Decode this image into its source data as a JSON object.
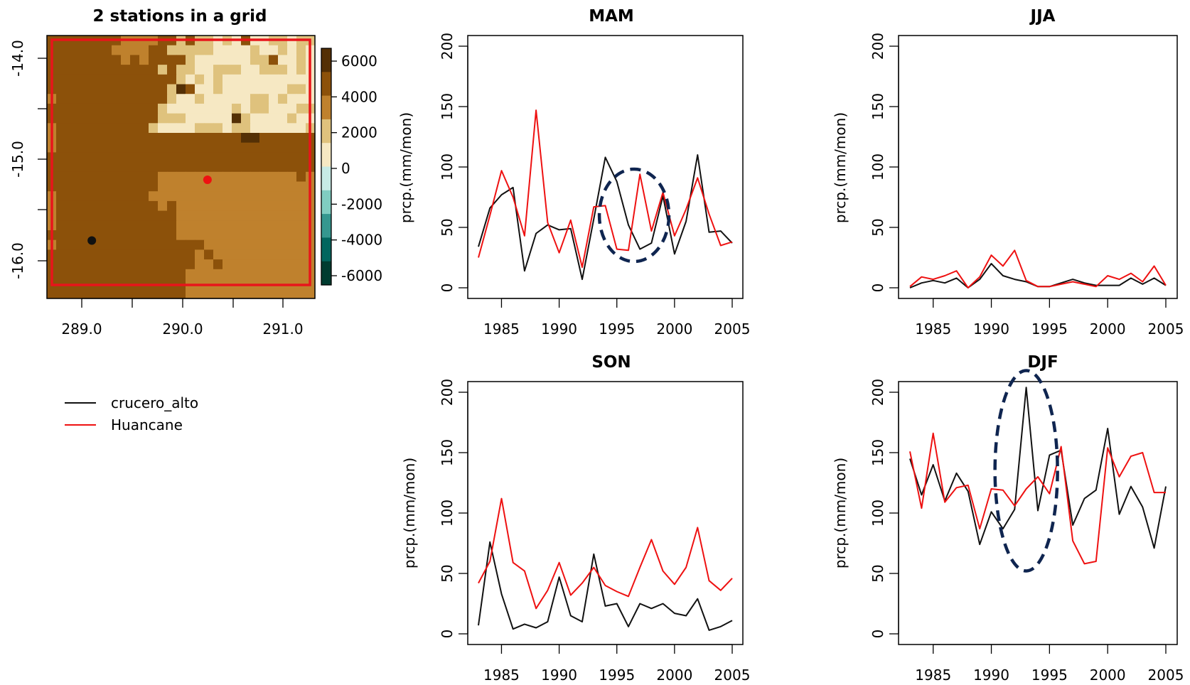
{
  "colors": {
    "black_series": "#111111",
    "red_series": "#ee1111",
    "map_border": "#e8151b",
    "highlight_ellipse": "#0f2550"
  },
  "legend": {
    "items": [
      {
        "label": "crucero_alto",
        "color": "#111111"
      },
      {
        "label": "Huancane",
        "color": "#ee1111"
      }
    ]
  },
  "map": {
    "title": "2 stations in a grid",
    "xticks": [
      "289.0",
      "290.0",
      "291.0"
    ],
    "yticks": [
      "-14.0",
      "-15.0",
      "-16.0"
    ],
    "colorbar": {
      "label": "prcp.(mm/mon)",
      "ticks": [
        "6000",
        "4000",
        "2000",
        "0",
        "-2000",
        "-4000",
        "-6000"
      ],
      "colors": [
        "#543005",
        "#8c510a",
        "#bf812d",
        "#dfc27d",
        "#f6e8c3",
        "#c7eae5",
        "#80cdc1",
        "#35978f",
        "#01665e",
        "#003c30"
      ]
    },
    "stations": [
      {
        "name": "crucero_alto",
        "lon": 289.1,
        "lat": -15.8,
        "color": "#111111"
      },
      {
        "name": "Huancane",
        "lon": 290.25,
        "lat": -15.2,
        "color": "#ee1111"
      }
    ]
  },
  "chart_data": [
    {
      "type": "line",
      "title": "MAM",
      "xlabel": "",
      "ylabel": "",
      "xlim": [
        1983,
        2005
      ],
      "ylim": [
        0,
        200
      ],
      "xticks": [
        "1985",
        "1990",
        "1995",
        "2000",
        "2005"
      ],
      "yticks": [
        "0",
        "50",
        "100",
        "150",
        "200"
      ],
      "x": [
        1983,
        1984,
        1985,
        1986,
        1987,
        1988,
        1989,
        1990,
        1991,
        1992,
        1993,
        1994,
        1995,
        1996,
        1997,
        1998,
        1999,
        2000,
        2001,
        2002,
        2003,
        2004,
        2005
      ],
      "series": [
        {
          "name": "crucero_alto",
          "color": "#111111",
          "values": [
            34,
            66,
            77,
            83,
            14,
            45,
            52,
            48,
            49,
            7,
            57,
            108,
            88,
            52,
            32,
            37,
            76,
            28,
            55,
            110,
            46,
            47,
            37
          ]
        },
        {
          "name": "Huancane",
          "color": "#ee1111",
          "values": [
            25,
            60,
            97,
            75,
            43,
            147,
            54,
            29,
            56,
            17,
            67,
            68,
            32,
            31,
            94,
            47,
            79,
            43,
            65,
            91,
            61,
            35,
            38
          ]
        }
      ],
      "highlight": {
        "center_year": 1996.5,
        "center_value": 60
      }
    },
    {
      "type": "line",
      "title": "JJA",
      "xlabel": "",
      "ylabel": "prcp.(mm/mon)",
      "xlim": [
        1983,
        2005
      ],
      "ylim": [
        0,
        200
      ],
      "xticks": [
        "1985",
        "1990",
        "1995",
        "2000",
        "2005"
      ],
      "yticks": [
        "0",
        "50",
        "100",
        "150",
        "200"
      ],
      "x": [
        1983,
        1984,
        1985,
        1986,
        1987,
        1988,
        1989,
        1990,
        1991,
        1992,
        1993,
        1994,
        1995,
        1996,
        1997,
        1998,
        1999,
        2000,
        2001,
        2002,
        2003,
        2004,
        2005
      ],
      "series": [
        {
          "name": "crucero_alto",
          "color": "#111111",
          "values": [
            0,
            4,
            6,
            4,
            8,
            0,
            7,
            20,
            10,
            7,
            5,
            1,
            1,
            4,
            7,
            4,
            2,
            2,
            2,
            8,
            3,
            8,
            2
          ]
        },
        {
          "name": "Huancane",
          "color": "#ee1111",
          "values": [
            1,
            9,
            7,
            10,
            14,
            0,
            9,
            27,
            18,
            31,
            6,
            1,
            1,
            3,
            5,
            3,
            1,
            10,
            7,
            12,
            5,
            18,
            2
          ]
        }
      ]
    },
    {
      "type": "line",
      "title": "SON",
      "xlabel": "",
      "ylabel": "prcp.(mm/mon)",
      "xlim": [
        1983,
        2005
      ],
      "ylim": [
        0,
        200
      ],
      "xticks": [
        "1985",
        "1990",
        "1995",
        "2000",
        "2005"
      ],
      "yticks": [
        "0",
        "50",
        "100",
        "150",
        "200"
      ],
      "x": [
        1983,
        1984,
        1985,
        1986,
        1987,
        1988,
        1989,
        1990,
        1991,
        1992,
        1993,
        1994,
        1995,
        1996,
        1997,
        1998,
        1999,
        2000,
        2001,
        2002,
        2003,
        2004,
        2005
      ],
      "series": [
        {
          "name": "crucero_alto",
          "color": "#111111",
          "values": [
            7,
            76,
            33,
            4,
            8,
            5,
            10,
            47,
            15,
            10,
            66,
            23,
            25,
            6,
            25,
            21,
            25,
            17,
            15,
            29,
            3,
            6,
            11
          ]
        },
        {
          "name": "Huancane",
          "color": "#ee1111",
          "values": [
            42,
            60,
            112,
            59,
            52,
            21,
            36,
            59,
            32,
            42,
            55,
            40,
            35,
            31,
            55,
            78,
            52,
            41,
            55,
            88,
            44,
            36,
            46
          ]
        }
      ]
    },
    {
      "type": "line",
      "title": "DJF",
      "xlabel": "",
      "ylabel": "prcp.(mm/mon)",
      "xlim": [
        1983,
        2005
      ],
      "ylim": [
        0,
        200
      ],
      "xticks": [
        "1985",
        "1990",
        "1995",
        "2000",
        "2005"
      ],
      "yticks": [
        "0",
        "50",
        "100",
        "150",
        "200"
      ],
      "x": [
        1983,
        1984,
        1985,
        1986,
        1987,
        1988,
        1989,
        1990,
        1991,
        1992,
        1993,
        1994,
        1995,
        1996,
        1997,
        1998,
        1999,
        2000,
        2001,
        2002,
        2003,
        2004,
        2005
      ],
      "series": [
        {
          "name": "crucero_alto",
          "color": "#111111",
          "values": [
            145,
            115,
            140,
            110,
            133,
            118,
            74,
            101,
            87,
            103,
            204,
            102,
            148,
            152,
            90,
            112,
            119,
            170,
            99,
            122,
            105,
            71,
            122
          ]
        },
        {
          "name": "Huancane",
          "color": "#ee1111",
          "values": [
            151,
            104,
            166,
            109,
            121,
            123,
            87,
            120,
            119,
            106,
            120,
            130,
            116,
            155,
            77,
            58,
            60,
            154,
            130,
            147,
            150,
            117,
            117
          ]
        }
      ],
      "highlight": {
        "center_year": 1993,
        "center_value": 135
      }
    }
  ]
}
